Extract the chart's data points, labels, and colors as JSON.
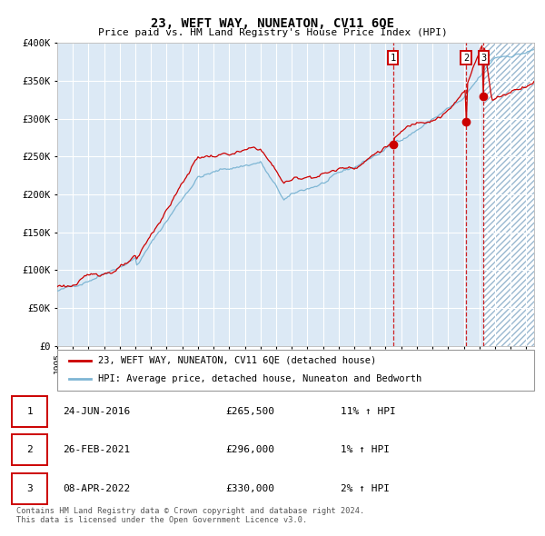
{
  "title": "23, WEFT WAY, NUNEATON, CV11 6QE",
  "subtitle": "Price paid vs. HM Land Registry's House Price Index (HPI)",
  "legend_line1": "23, WEFT WAY, NUNEATON, CV11 6QE (detached house)",
  "legend_line2": "HPI: Average price, detached house, Nuneaton and Bedworth",
  "sale_points": [
    {
      "label": "1",
      "date": "24-JUN-2016",
      "price": 265500,
      "pct": "11%",
      "direction": "↑"
    },
    {
      "label": "2",
      "date": "26-FEB-2021",
      "price": 296000,
      "pct": "1%",
      "direction": "↑"
    },
    {
      "label": "3",
      "date": "08-APR-2022",
      "price": 330000,
      "pct": "2%",
      "direction": "↑"
    }
  ],
  "sale_dates_decimal": [
    2016.48,
    2021.15,
    2022.27
  ],
  "sale_prices": [
    265500,
    296000,
    330000
  ],
  "footer": "Contains HM Land Registry data © Crown copyright and database right 2024.\nThis data is licensed under the Open Government Licence v3.0.",
  "red_color": "#cc0000",
  "blue_color": "#7eb6d4",
  "bg_color": "#dce9f5",
  "ylim": [
    0,
    400000
  ],
  "xlim_start": 1995.0,
  "xlim_end": 2025.5
}
